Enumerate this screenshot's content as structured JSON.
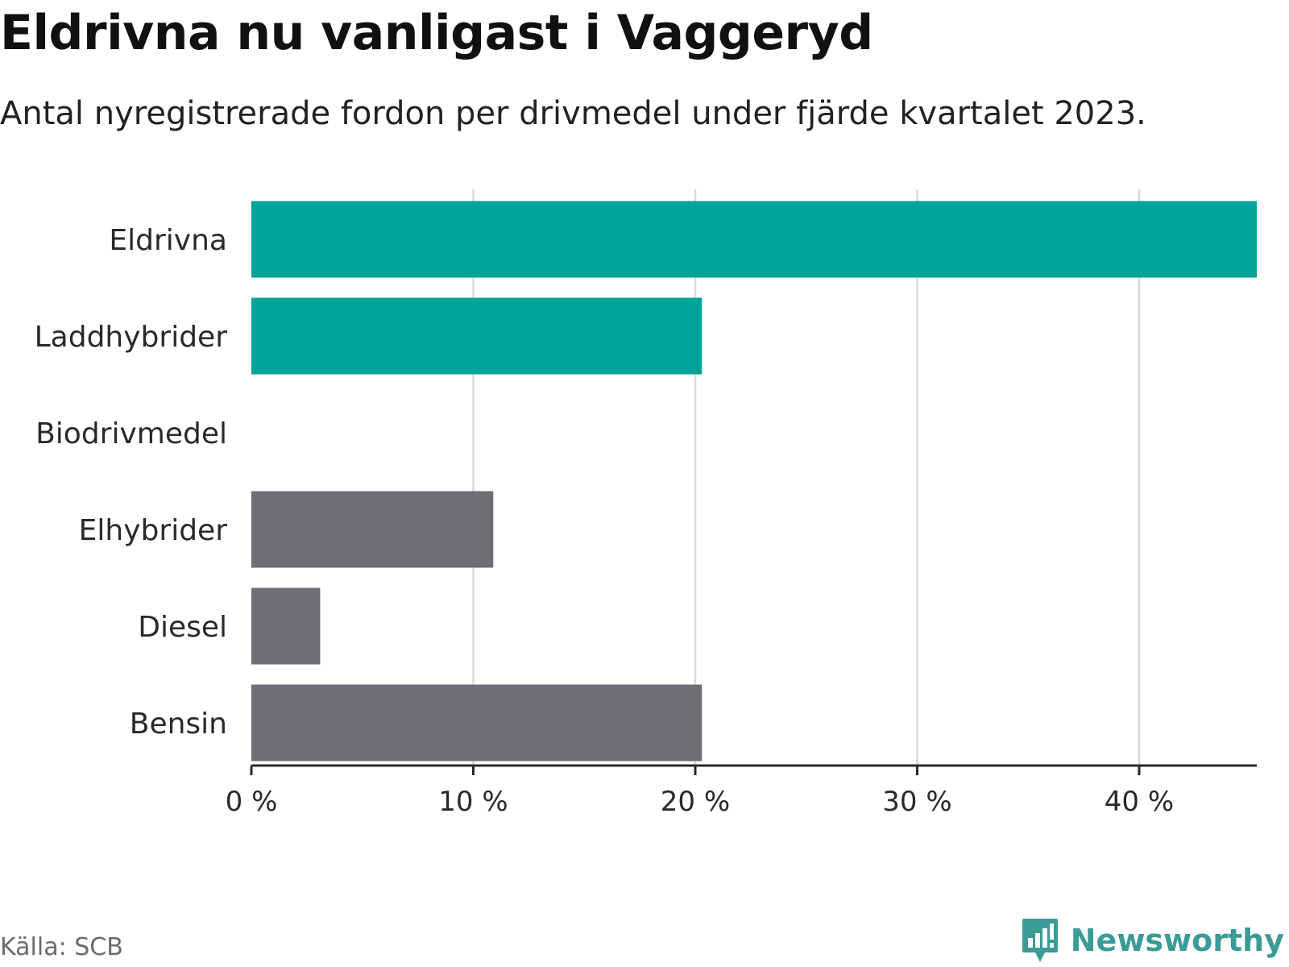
{
  "title": "Eldrivna nu vanligast i Vaggeryd",
  "subtitle": "Antal nyregistrerade fordon per drivmedel under fjärde kvartalet 2023.",
  "source": "Källa: SCB",
  "brand": "Newsworthy",
  "colors": {
    "highlight": "#00a39a",
    "other": "#6e6e75",
    "grid": "#d9d9d9",
    "axis": "#2a2a2a"
  },
  "chart_data": {
    "type": "bar",
    "orientation": "horizontal",
    "categories": [
      "Eldrivna",
      "Laddhybrider",
      "Biodrivmedel",
      "Elhybrider",
      "Diesel",
      "Bensin"
    ],
    "values": [
      45.3,
      20.3,
      0,
      10.9,
      3.1,
      20.3
    ],
    "highlighted": [
      true,
      true,
      true,
      false,
      false,
      false
    ],
    "xlim": [
      0,
      45.3
    ],
    "xticks": [
      0,
      10,
      20,
      30,
      40
    ],
    "xtick_labels": [
      "0 %",
      "10 %",
      "20 %",
      "30 %",
      "40 %"
    ],
    "unit": "%",
    "grid": true
  }
}
